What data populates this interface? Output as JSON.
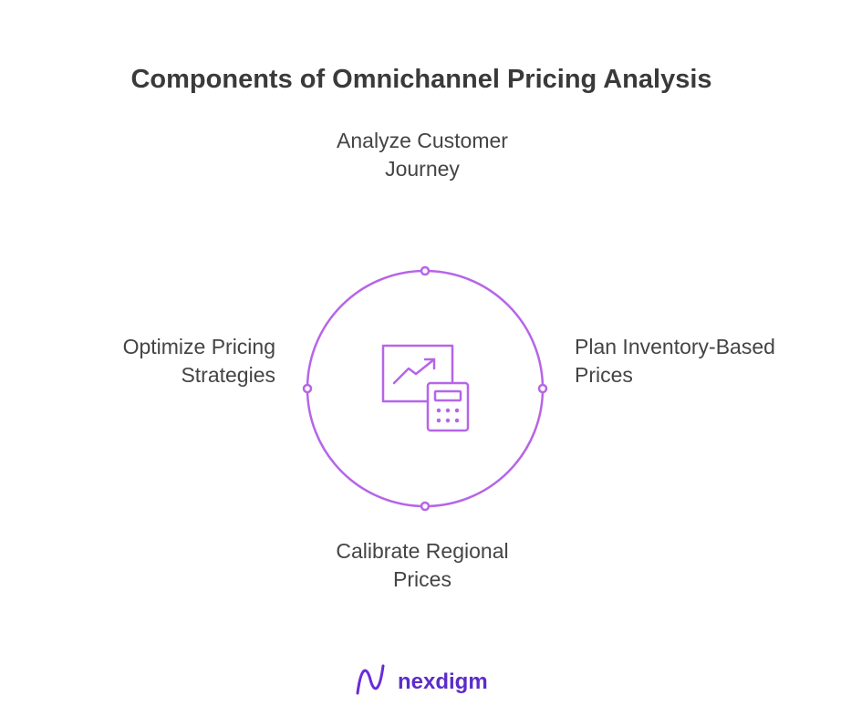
{
  "title": "Components of Omnichannel Pricing Analysis",
  "nodes": [
    {
      "label": [
        "Analyze Customer",
        "Journey"
      ]
    },
    {
      "label": [
        "Plan Inventory-Based",
        "Prices"
      ]
    },
    {
      "label": [
        "Calibrate Regional",
        "Prices"
      ]
    },
    {
      "label": [
        "Optimize Pricing",
        "Strategies"
      ]
    }
  ],
  "brand": "nexdigm"
}
